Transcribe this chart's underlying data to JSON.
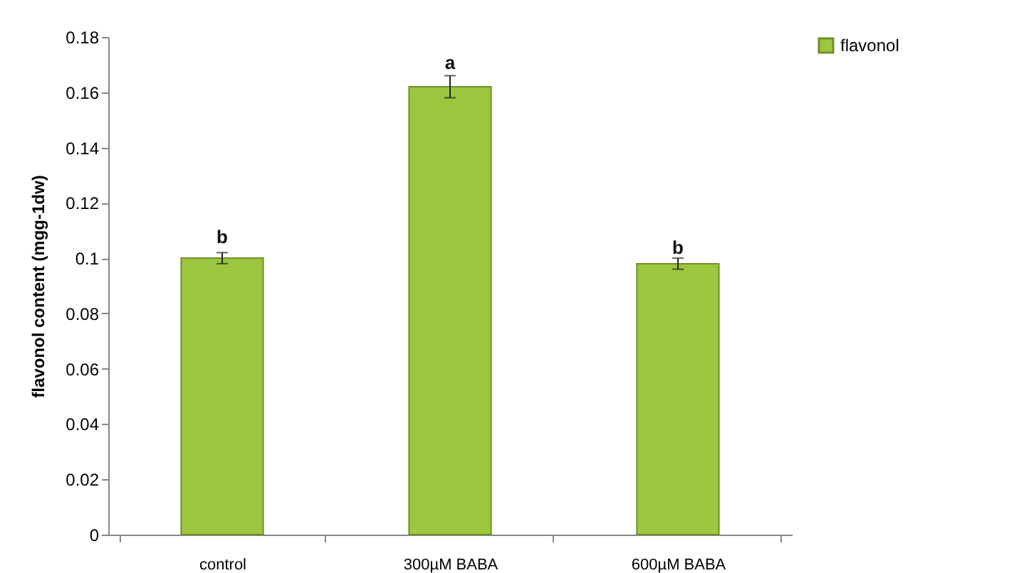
{
  "chart_data": {
    "type": "bar",
    "ylabel": "flavonol content (mgg-1dw)",
    "categories": [
      "control",
      "300µM BABA",
      "600µM BABA"
    ],
    "series": [
      {
        "name": "flavonol",
        "color": "#9dc63f",
        "values": [
          0.1,
          0.162,
          0.098
        ],
        "errors": [
          0.002,
          0.004,
          0.002
        ]
      }
    ],
    "ylim": [
      0,
      0.18
    ],
    "yticks": [
      0,
      0.02,
      0.04,
      0.06,
      0.08,
      0.1,
      0.12,
      0.14,
      0.16,
      0.18
    ],
    "annotations": [
      {
        "text": "b",
        "x": "control",
        "y": 0.104
      },
      {
        "text": "a",
        "x": "300µM BABA",
        "y": 0.167
      },
      {
        "text": "b",
        "x": "600µM BABA",
        "y": 0.1
      }
    ],
    "grid": false,
    "legend": "right"
  }
}
